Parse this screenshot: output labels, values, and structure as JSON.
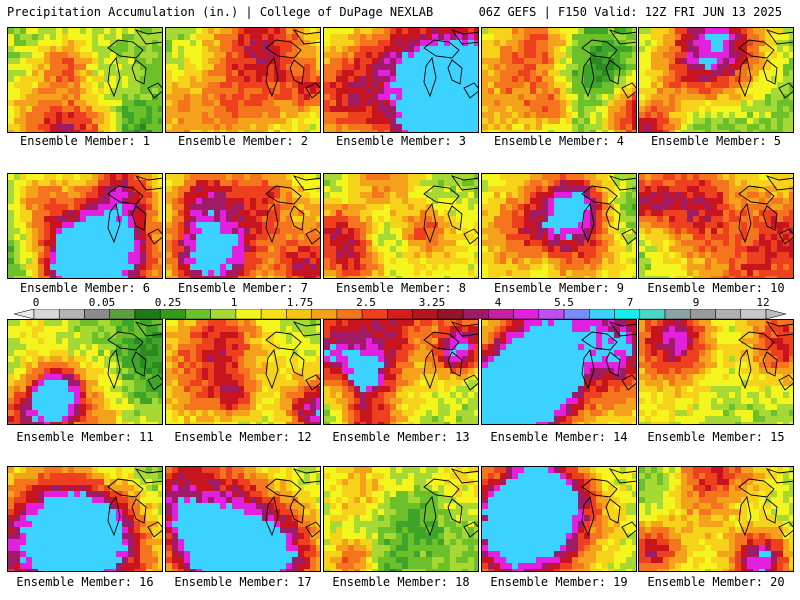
{
  "header": {
    "title": "Precipitation Accumulation (in.) | College of DuPage NEXLAB",
    "run_info": "06Z GEFS | F150 Valid: 12Z FRI JUN 13 2025"
  },
  "panels": [
    {
      "label": "Ensemble Member: 1"
    },
    {
      "label": "Ensemble Member: 2"
    },
    {
      "label": "Ensemble Member: 3"
    },
    {
      "label": "Ensemble Member: 4"
    },
    {
      "label": "Ensemble Member: 5"
    },
    {
      "label": "Ensemble Member: 6"
    },
    {
      "label": "Ensemble Member: 7"
    },
    {
      "label": "Ensemble Member: 8"
    },
    {
      "label": "Ensemble Member: 9"
    },
    {
      "label": "Ensemble Member: 10"
    },
    {
      "label": "Ensemble Member: 11"
    },
    {
      "label": "Ensemble Member: 12"
    },
    {
      "label": "Ensemble Member: 13"
    },
    {
      "label": "Ensemble Member: 14"
    },
    {
      "label": "Ensemble Member: 15"
    },
    {
      "label": "Ensemble Member: 16"
    },
    {
      "label": "Ensemble Member: 17"
    },
    {
      "label": "Ensemble Member: 18"
    },
    {
      "label": "Ensemble Member: 19"
    },
    {
      "label": "Ensemble Member: 20"
    }
  ],
  "scale": {
    "tick_labels": [
      "0",
      "0.05",
      "0.25",
      "1",
      "1.75",
      "2.5",
      "3.25",
      "4",
      "5.5",
      "7",
      "9",
      "12"
    ],
    "colors": [
      "#d8d8d8",
      "#b4b4b4",
      "#8c8c8c",
      "#5e9e3e",
      "#1f7a16",
      "#339a1a",
      "#6cc02a",
      "#a6d934",
      "#f5f51e",
      "#f7e016",
      "#f6c415",
      "#f4a11c",
      "#f4751d",
      "#ee3f1e",
      "#d61d1d",
      "#b6141e",
      "#961428",
      "#a01b66",
      "#c61fa0",
      "#e31fe0",
      "#c04ef5",
      "#7a8aff",
      "#3cd2ff",
      "#18ecec",
      "#4bd7c8",
      "#8aa4a6",
      "#9a9a9a",
      "#b0b0b0",
      "#c8c8c8"
    ]
  }
}
